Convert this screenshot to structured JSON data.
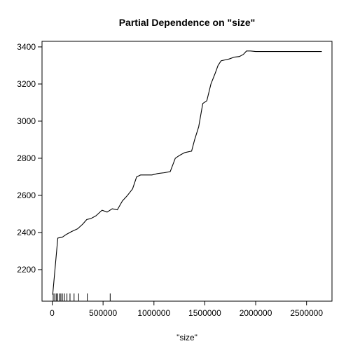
{
  "chart_data": {
    "type": "line",
    "title": "Partial Dependence on \"size\"",
    "xlabel": "\"size\"",
    "ylabel": "",
    "xlim": [
      -100000,
      2750000
    ],
    "ylim": [
      2030000000,
      3430000000
    ],
    "y_range": [
      2030,
      3430
    ],
    "x_ticks": [
      0,
      500000,
      1000000,
      1500000,
      2000000,
      2500000
    ],
    "x_tick_labels": [
      "0",
      "500000",
      "1000000",
      "1500000",
      "2000000",
      "2500000"
    ],
    "y_ticks": [
      2200,
      2400,
      2600,
      2800,
      3000,
      3200,
      3400
    ],
    "y_tick_labels": [
      "2200",
      "2400",
      "2600",
      "2800",
      "3000",
      "3200",
      "3400"
    ],
    "grid": false,
    "line_color": "#000000",
    "series": [
      {
        "x": [
          5000,
          55000,
          100000,
          140000,
          190000,
          250000,
          300000,
          340000,
          380000,
          430000,
          490000,
          540000,
          590000,
          640000,
          690000,
          740000,
          790000,
          830000,
          870000,
          920000,
          980000,
          1040000,
          1100000,
          1160000,
          1210000,
          1250000,
          1300000,
          1340000,
          1370000,
          1400000,
          1440000,
          1480000,
          1520000,
          1560000,
          1600000,
          1630000,
          1660000,
          1700000,
          1740000,
          1790000,
          1840000,
          1880000,
          1910000,
          1950000,
          2000000,
          2100000,
          2200000,
          2300000,
          2400000,
          2500000,
          2600000,
          2650000
        ],
        "y": [
          2065,
          2370,
          2375,
          2390,
          2405,
          2420,
          2445,
          2470,
          2475,
          2490,
          2520,
          2510,
          2528,
          2522,
          2570,
          2600,
          2635,
          2700,
          2710,
          2710,
          2710,
          2718,
          2722,
          2728,
          2800,
          2815,
          2830,
          2835,
          2838,
          2900,
          2970,
          3095,
          3110,
          3200,
          3255,
          3300,
          3325,
          3330,
          3335,
          3345,
          3348,
          3360,
          3378,
          3378,
          3375,
          3375,
          3375,
          3375,
          3375,
          3375,
          3375,
          3375
        ]
      }
    ],
    "rug": [
      10000,
      25000,
      40000,
      55000,
      70000,
      85000,
      100000,
      120000,
      145000,
      175000,
      215000,
      260000,
      345000,
      570000
    ]
  }
}
